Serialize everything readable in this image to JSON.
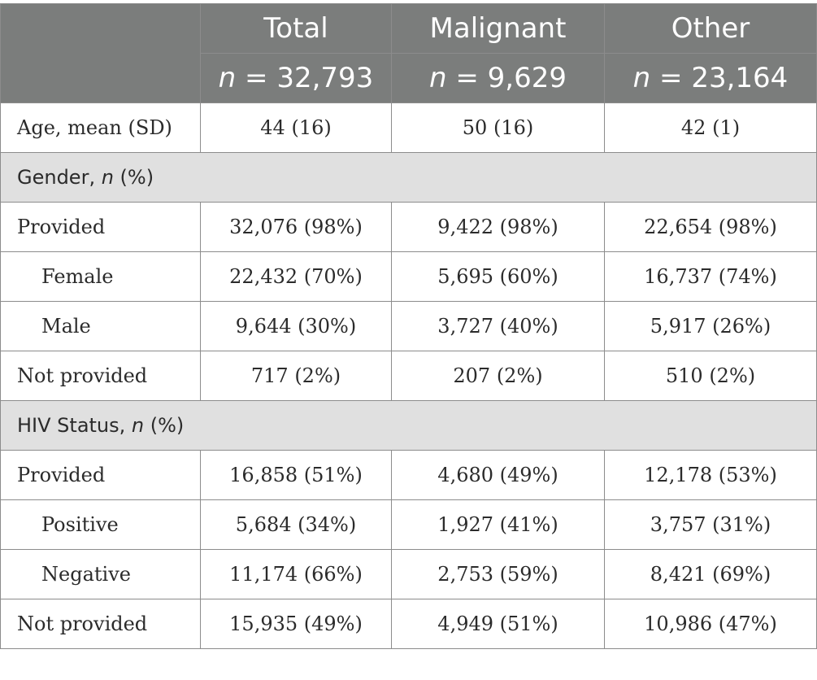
{
  "header": {
    "columns": [
      "Total",
      "Malignant",
      "Other"
    ],
    "n_symbol": "n",
    "counts": [
      "= 32,793",
      "= 9,629",
      "= 23,164"
    ]
  },
  "rows": {
    "age": {
      "label": "Age, mean (SD)",
      "values": [
        "44 (16)",
        "50 (16)",
        "42 (1)"
      ]
    },
    "gender_section": {
      "prefix": "Gender, ",
      "n_symbol": "n",
      "suffix": " (%)"
    },
    "gender_provided": {
      "label": "Provided",
      "values": [
        "32,076 (98%)",
        "9,422 (98%)",
        "22,654 (98%)"
      ]
    },
    "gender_female": {
      "label": "Female",
      "values": [
        "22,432 (70%)",
        "5,695 (60%)",
        "16,737 (74%)"
      ]
    },
    "gender_male": {
      "label": "Male",
      "values": [
        "9,644 (30%)",
        "3,727 (40%)",
        "5,917 (26%)"
      ]
    },
    "gender_not_provided": {
      "label": "Not provided",
      "values": [
        "717 (2%)",
        "207 (2%)",
        "510 (2%)"
      ]
    },
    "hiv_section": {
      "prefix": "HIV Status, ",
      "n_symbol": "n",
      "suffix": " (%)"
    },
    "hiv_provided": {
      "label": "Provided",
      "values": [
        "16,858 (51%)",
        "4,680 (49%)",
        "12,178 (53%)"
      ]
    },
    "hiv_positive": {
      "label": "Positive",
      "values": [
        "5,684 (34%)",
        "1,927 (41%)",
        "3,757 (31%)"
      ]
    },
    "hiv_negative": {
      "label": "Negative",
      "values": [
        "11,174 (66%)",
        "2,753 (59%)",
        "8,421 (69%)"
      ]
    },
    "hiv_not_provided": {
      "label": "Not provided",
      "values": [
        "15,935 (49%)",
        "4,949 (51%)",
        "10,986 (47%)"
      ]
    }
  }
}
